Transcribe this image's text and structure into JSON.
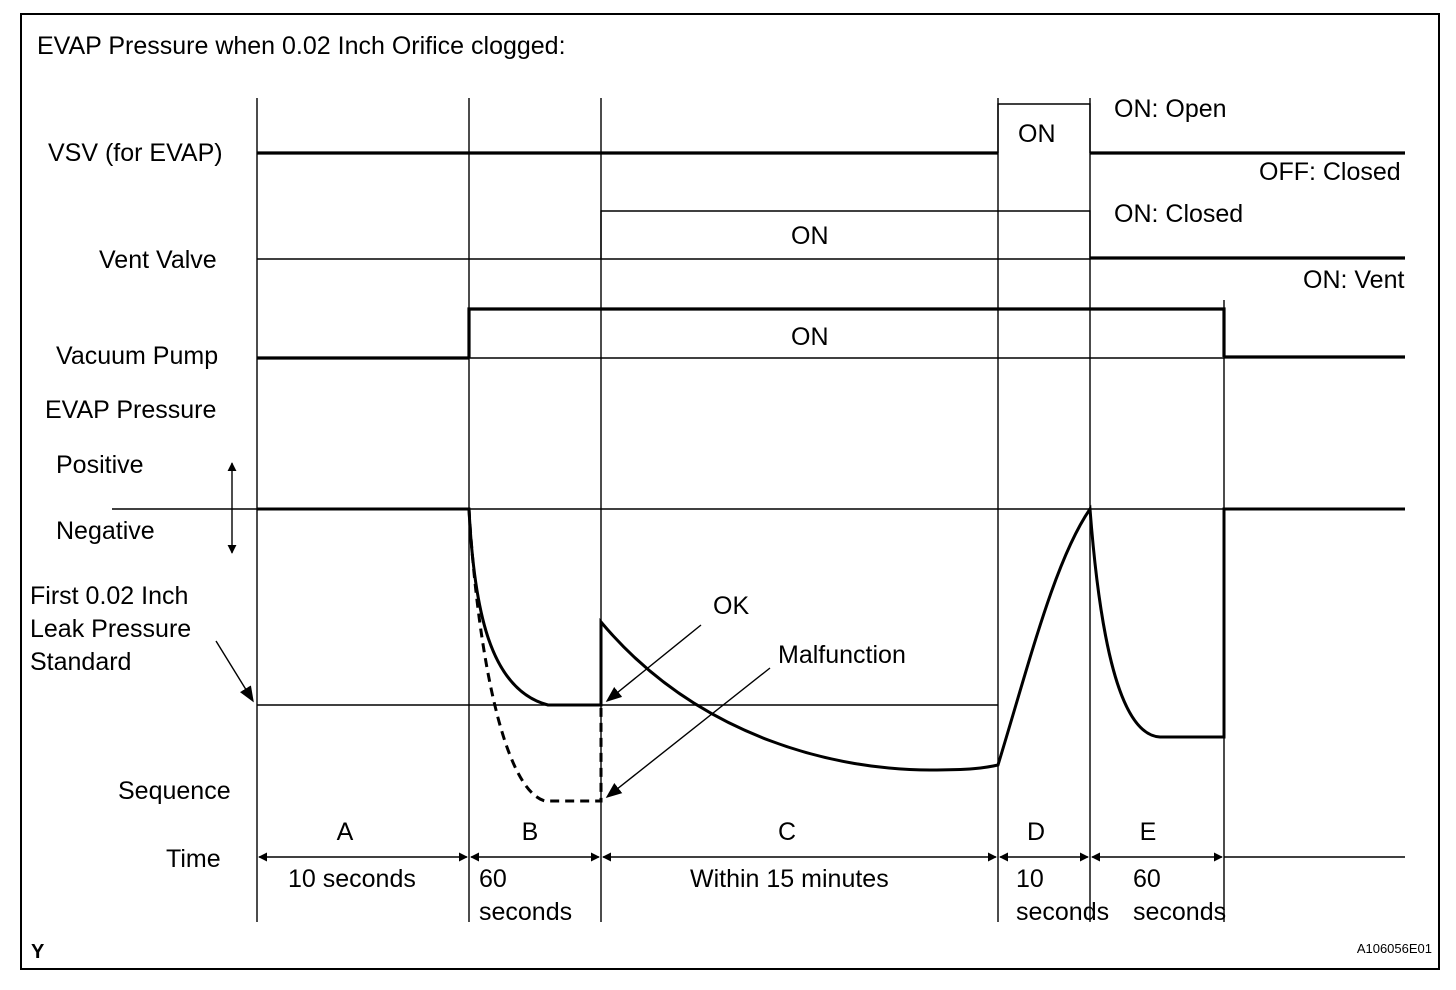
{
  "title": "EVAP Pressure when 0.02 Inch Orifice clogged:",
  "signals": {
    "vsv": {
      "label": "VSV (for EVAP)",
      "on_label": "ON",
      "on_state": "ON: Open",
      "off_state": "OFF: Closed"
    },
    "vent": {
      "label": "Vent Valve",
      "on_label": "ON",
      "on_state": "ON: Closed",
      "off_state": "ON: Vent"
    },
    "pump": {
      "label": "Vacuum Pump",
      "on_label": "ON"
    }
  },
  "pressure": {
    "label": "EVAP Pressure",
    "positive": "Positive",
    "negative": "Negative",
    "standard_line1": "First 0.02 Inch",
    "standard_line2": "Leak Pressure",
    "standard_line3": "Standard",
    "ok": "OK",
    "malfunction": "Malfunction"
  },
  "sequence": {
    "label": "Sequence",
    "time_label": "Time",
    "steps": [
      {
        "name": "A",
        "time_line1": "10 seconds",
        "time_line2": ""
      },
      {
        "name": "B",
        "time_line1": "60",
        "time_line2": "seconds"
      },
      {
        "name": "C",
        "time_line1": "Within 15 minutes",
        "time_line2": ""
      },
      {
        "name": "D",
        "time_line1": "10",
        "time_line2": "seconds"
      },
      {
        "name": "E",
        "time_line1": "60",
        "time_line2": "seconds"
      }
    ]
  },
  "footer": {
    "left_mark": "Y",
    "figure_code": "A106056E01"
  }
}
